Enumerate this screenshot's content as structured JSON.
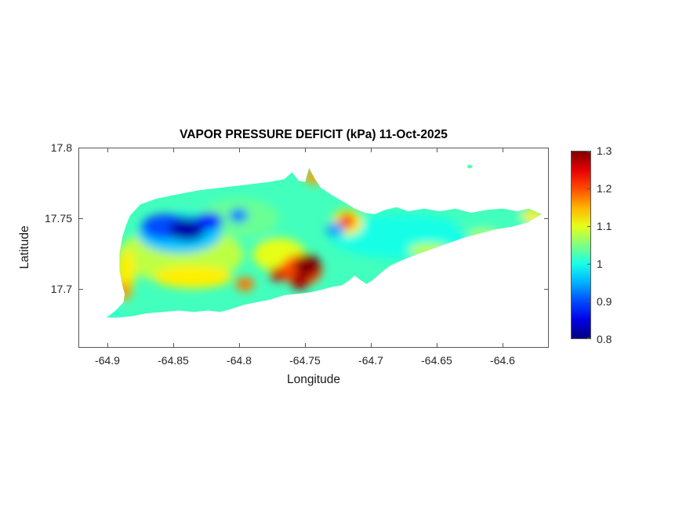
{
  "chart_data": {
    "type": "heatmap",
    "title": "VAPOR PRESSURE DEFICIT (kPa) 11-Oct-2025",
    "units": "kPa",
    "date": "11-Oct-2025",
    "xlabel": "Longitude",
    "ylabel": "Latitude",
    "xlim": [
      -64.922,
      -64.565
    ],
    "ylim": [
      17.658,
      17.8
    ],
    "grid": false,
    "xticks": [
      -64.9,
      -64.85,
      -64.8,
      -64.75,
      -64.7,
      -64.65,
      -64.6
    ],
    "xtick_labels": [
      "-64.9",
      "-64.85",
      "-64.8",
      "-64.75",
      "-64.7",
      "-64.65",
      "-64.6"
    ],
    "yticks": [
      17.7,
      17.75,
      17.8
    ],
    "ytick_labels": [
      "17.7",
      "17.75",
      "17.8"
    ],
    "colorbar": {
      "min": 0.8,
      "max": 1.3,
      "ticks": [
        1.3,
        1.2,
        1.1,
        1,
        0.9,
        0.8
      ],
      "tick_labels": [
        "1.3",
        "1.2",
        "1.1",
        "1",
        "0.9",
        "0.8"
      ],
      "colormap": "jet",
      "position": "right"
    },
    "base_value": 1.02,
    "island_outline": [
      [
        -64.902,
        17.679
      ],
      [
        -64.895,
        17.684
      ],
      [
        -64.889,
        17.69
      ],
      [
        -64.888,
        17.696
      ],
      [
        -64.89,
        17.703
      ],
      [
        -64.892,
        17.713
      ],
      [
        -64.892,
        17.725
      ],
      [
        -64.89,
        17.736
      ],
      [
        -64.887,
        17.745
      ],
      [
        -64.884,
        17.752
      ],
      [
        -64.876,
        17.76
      ],
      [
        -64.864,
        17.764
      ],
      [
        -64.849,
        17.767
      ],
      [
        -64.832,
        17.77
      ],
      [
        -64.814,
        17.772
      ],
      [
        -64.796,
        17.774
      ],
      [
        -64.778,
        17.776
      ],
      [
        -64.766,
        17.778
      ],
      [
        -64.76,
        17.783
      ],
      [
        -64.755,
        17.777
      ],
      [
        -64.75,
        17.776
      ],
      [
        -64.747,
        17.786
      ],
      [
        -64.743,
        17.779
      ],
      [
        -64.738,
        17.772
      ],
      [
        -64.73,
        17.767
      ],
      [
        -64.721,
        17.762
      ],
      [
        -64.712,
        17.757
      ],
      [
        -64.704,
        17.754
      ],
      [
        -64.697,
        17.753
      ],
      [
        -64.689,
        17.756
      ],
      [
        -64.68,
        17.758
      ],
      [
        -64.671,
        17.755
      ],
      [
        -64.659,
        17.757
      ],
      [
        -64.647,
        17.755
      ],
      [
        -64.635,
        17.757
      ],
      [
        -64.623,
        17.754
      ],
      [
        -64.611,
        17.756
      ],
      [
        -64.599,
        17.757
      ],
      [
        -64.588,
        17.755
      ],
      [
        -64.579,
        17.757
      ],
      [
        -64.569,
        17.753
      ],
      [
        -64.58,
        17.747
      ],
      [
        -64.592,
        17.744
      ],
      [
        -64.605,
        17.742
      ],
      [
        -64.617,
        17.739
      ],
      [
        -64.629,
        17.736
      ],
      [
        -64.641,
        17.732
      ],
      [
        -64.653,
        17.728
      ],
      [
        -64.665,
        17.724
      ],
      [
        -64.676,
        17.72
      ],
      [
        -64.685,
        17.716
      ],
      [
        -64.692,
        17.711
      ],
      [
        -64.698,
        17.706
      ],
      [
        -64.703,
        17.703
      ],
      [
        -64.708,
        17.706
      ],
      [
        -64.712,
        17.709
      ],
      [
        -64.717,
        17.705
      ],
      [
        -64.722,
        17.702
      ],
      [
        -64.729,
        17.701
      ],
      [
        -64.737,
        17.699
      ],
      [
        -64.746,
        17.697
      ],
      [
        -64.756,
        17.696
      ],
      [
        -64.766,
        17.695
      ],
      [
        -64.776,
        17.692
      ],
      [
        -64.787,
        17.69
      ],
      [
        -64.797,
        17.688
      ],
      [
        -64.807,
        17.685
      ],
      [
        -64.815,
        17.683
      ],
      [
        -64.824,
        17.684
      ],
      [
        -64.835,
        17.683
      ],
      [
        -64.847,
        17.684
      ],
      [
        -64.859,
        17.683
      ],
      [
        -64.871,
        17.682
      ],
      [
        -64.882,
        17.68
      ],
      [
        -64.893,
        17.679
      ]
    ],
    "islet": {
      "lon": -64.624,
      "lat": 17.787,
      "value": 1.03,
      "rx": 0.002,
      "ry": 0.0013
    },
    "features": [
      {
        "name": "west-interior-yellowgreen-wash",
        "lon": -64.845,
        "lat": 17.724,
        "value": 1.08,
        "rx": 0.048,
        "ry": 0.02
      },
      {
        "name": "north-center-green-wash",
        "lon": -64.8,
        "lat": 17.75,
        "value": 1.04,
        "rx": 0.03,
        "ry": 0.014
      },
      {
        "name": "east-cyan-wash",
        "lon": -64.675,
        "lat": 17.737,
        "value": 1.0,
        "rx": 0.055,
        "ry": 0.016
      },
      {
        "name": "east-tail-green-wash",
        "lon": -64.6,
        "lat": 17.746,
        "value": 1.02,
        "rx": 0.035,
        "ry": 0.01
      },
      {
        "name": "west-cyan-region",
        "lon": -64.846,
        "lat": 17.739,
        "value": 0.96,
        "rx": 0.032,
        "ry": 0.014
      },
      {
        "name": "northwest-blue-patch",
        "lon": -64.857,
        "lat": 17.744,
        "value": 0.9,
        "rx": 0.018,
        "ry": 0.009
      },
      {
        "name": "northwest-dark-blue-core",
        "lon": -64.84,
        "lat": 17.742,
        "value": 0.82,
        "rx": 0.014,
        "ry": 0.008
      },
      {
        "name": "blue-east-lobe",
        "lon": -64.823,
        "lat": 17.748,
        "value": 0.87,
        "rx": 0.01,
        "ry": 0.006
      },
      {
        "name": "blue-spot",
        "lon": -64.801,
        "lat": 17.752,
        "value": 0.92,
        "rx": 0.007,
        "ry": 0.005
      },
      {
        "name": "southwest-yellow-band",
        "lon": -64.836,
        "lat": 17.708,
        "value": 1.12,
        "rx": 0.03,
        "ry": 0.008
      },
      {
        "name": "west-coast-yellow-fringe",
        "lon": -64.887,
        "lat": 17.712,
        "value": 1.12,
        "rx": 0.007,
        "ry": 0.016
      },
      {
        "name": "west-coast-orange-spot",
        "lon": -64.888,
        "lat": 17.698,
        "value": 1.16,
        "rx": 0.005,
        "ry": 0.007
      },
      {
        "name": "center-yellow-area",
        "lon": -64.77,
        "lat": 17.724,
        "value": 1.1,
        "rx": 0.02,
        "ry": 0.012
      },
      {
        "name": "center-orange-area",
        "lon": -64.753,
        "lat": 17.713,
        "value": 1.2,
        "rx": 0.016,
        "ry": 0.011
      },
      {
        "name": "south-central-red-max",
        "lon": -64.748,
        "lat": 17.716,
        "value": 1.3,
        "rx": 0.01,
        "ry": 0.008
      },
      {
        "name": "red-south-lobe",
        "lon": -64.754,
        "lat": 17.705,
        "value": 1.28,
        "rx": 0.007,
        "ry": 0.006
      },
      {
        "name": "red-west-spot",
        "lon": -64.771,
        "lat": 17.71,
        "value": 1.26,
        "rx": 0.006,
        "ry": 0.005
      },
      {
        "name": "south-coast-orange-spot",
        "lon": -64.796,
        "lat": 17.703,
        "value": 1.18,
        "rx": 0.007,
        "ry": 0.005
      },
      {
        "name": "north-coast-orange-halo",
        "lon": -64.718,
        "lat": 17.747,
        "value": 1.12,
        "rx": 0.012,
        "ry": 0.009
      },
      {
        "name": "north-coast-red-spot",
        "lon": -64.718,
        "lat": 17.748,
        "value": 1.24,
        "rx": 0.006,
        "ry": 0.005
      },
      {
        "name": "north-notch-orange",
        "lon": -64.744,
        "lat": 17.78,
        "value": 1.16,
        "rx": 0.006,
        "ry": 0.006
      },
      {
        "name": "light-blue-spot-east-of-red",
        "lon": -64.727,
        "lat": 17.742,
        "value": 0.94,
        "rx": 0.007,
        "ry": 0.005
      },
      {
        "name": "tail-south-yellow-band",
        "lon": -64.655,
        "lat": 17.727,
        "value": 1.08,
        "rx": 0.016,
        "ry": 0.005
      },
      {
        "name": "tail-yellow-band-2",
        "lon": -64.614,
        "lat": 17.738,
        "value": 1.07,
        "rx": 0.012,
        "ry": 0.004
      },
      {
        "name": "east-tip-yellow",
        "lon": -64.576,
        "lat": 17.752,
        "value": 1.12,
        "rx": 0.008,
        "ry": 0.005
      },
      {
        "name": "southwest-tail-teal",
        "lon": -64.897,
        "lat": 17.682,
        "value": 1.01,
        "rx": 0.007,
        "ry": 0.004
      }
    ]
  },
  "colors": {
    "background": "#ffffff",
    "axis_line": "#565656",
    "tick_text": "#262626",
    "title_text": "#000000"
  }
}
